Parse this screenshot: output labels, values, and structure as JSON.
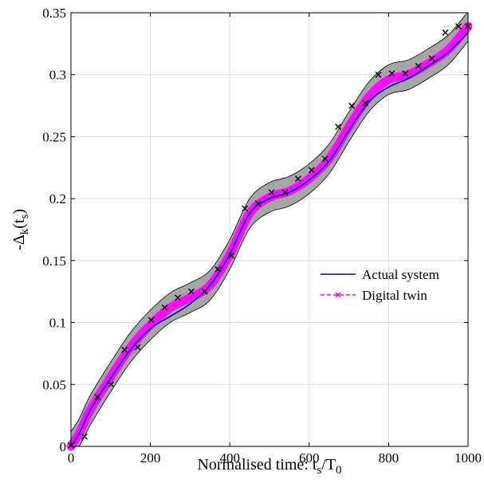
{
  "chart_data": {
    "type": "line",
    "xlabel": {
      "main": "Normalised time: t",
      "sub1": "s",
      "mid": "/T",
      "sub2": "0"
    },
    "ylabel": {
      "main": "-Δ",
      "sub1": "k",
      "mid": "(t",
      "sub2": "s",
      "end": ")"
    },
    "xlim": [
      0,
      1000
    ],
    "ylim": [
      0,
      0.35
    ],
    "xticks": [
      0,
      200,
      400,
      600,
      800,
      1000
    ],
    "xtick_labels": [
      "0",
      "200",
      "400",
      "600",
      "800",
      "1000"
    ],
    "yticks": [
      0,
      0.05,
      0.1,
      0.15,
      0.2,
      0.25,
      0.3,
      0.35
    ],
    "ytick_labels": [
      "0",
      "0.05",
      "0.1",
      "0.15",
      "0.2",
      "0.25",
      "0.3",
      "0.35"
    ],
    "grid": true,
    "legend": {
      "position": "center-right"
    },
    "series": [
      {
        "name": "Actual system",
        "color": "#0000cc",
        "style": "solid",
        "x": [
          0,
          20,
          50,
          100,
          150,
          200,
          250,
          300,
          350,
          400,
          450,
          500,
          550,
          600,
          650,
          700,
          750,
          800,
          850,
          900,
          950,
          1000
        ],
        "y": [
          0,
          0.01,
          0.03,
          0.055,
          0.078,
          0.095,
          0.105,
          0.115,
          0.13,
          0.155,
          0.188,
          0.2,
          0.205,
          0.215,
          0.23,
          0.255,
          0.278,
          0.29,
          0.297,
          0.307,
          0.318,
          0.334
        ]
      },
      {
        "name": "Digital twin",
        "color": "#ff00ff",
        "style": "dashed",
        "marker": "x",
        "x": [
          0,
          20,
          50,
          100,
          150,
          200,
          250,
          300,
          350,
          400,
          450,
          500,
          550,
          600,
          650,
          700,
          750,
          800,
          850,
          900,
          950,
          1000
        ],
        "y": [
          0,
          0.01,
          0.03,
          0.056,
          0.08,
          0.098,
          0.112,
          0.12,
          0.13,
          0.155,
          0.188,
          0.201,
          0.206,
          0.216,
          0.232,
          0.258,
          0.282,
          0.296,
          0.3,
          0.309,
          0.32,
          0.339
        ],
        "markers_x": [
          0,
          34,
          67,
          101,
          135,
          168,
          202,
          236,
          269,
          303,
          337,
          370,
          404,
          438,
          471,
          505,
          539,
          572,
          606,
          640,
          673,
          707,
          741,
          774,
          808,
          842,
          875,
          909,
          943,
          976,
          1000
        ],
        "markers_y": [
          0.001,
          0.008,
          0.04,
          0.05,
          0.078,
          0.08,
          0.102,
          0.112,
          0.12,
          0.125,
          0.125,
          0.143,
          0.154,
          0.192,
          0.196,
          0.205,
          0.205,
          0.216,
          0.223,
          0.232,
          0.258,
          0.275,
          0.277,
          0.3,
          0.301,
          0.301,
          0.307,
          0.313,
          0.334,
          0.339,
          0.339
        ]
      }
    ],
    "confidence_band": {
      "color": "#a6a6a6",
      "half_width": 0.012
    }
  }
}
